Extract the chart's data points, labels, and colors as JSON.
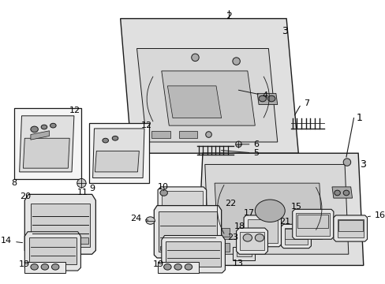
{
  "fig_width": 4.89,
  "fig_height": 3.6,
  "dpi": 100,
  "bg": "#ffffff",
  "lc": "#1a1a1a",
  "fill_panel": "#e8e8e8",
  "fill_inner": "#d0d0d0",
  "fill_white": "#ffffff",
  "fill_box": "#f0f0f0"
}
